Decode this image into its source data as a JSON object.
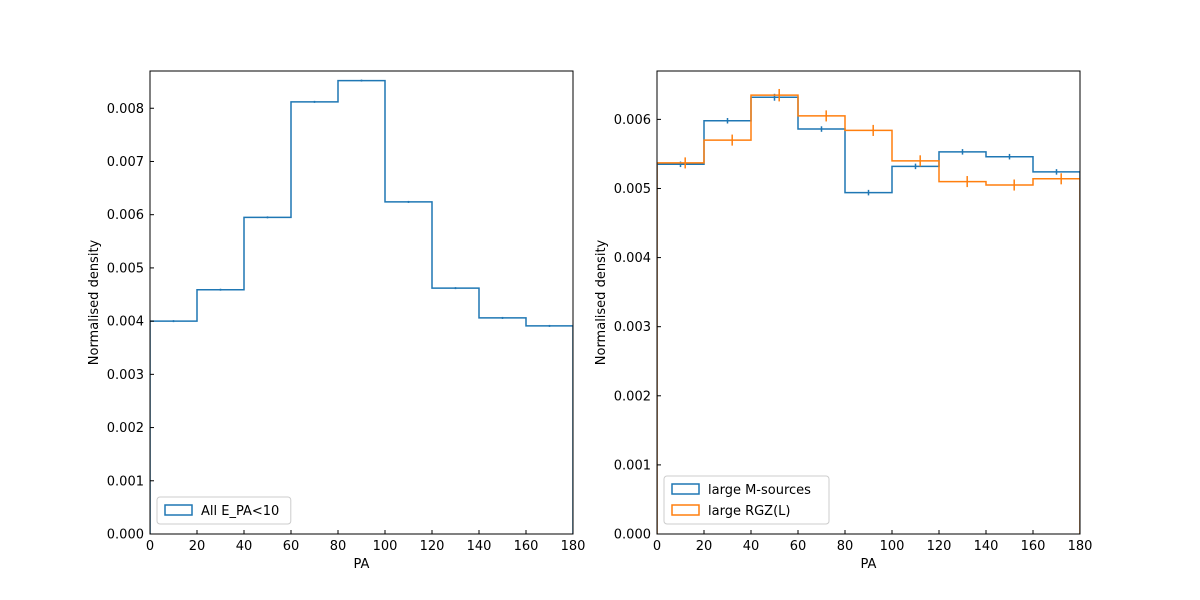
{
  "chart_data": [
    {
      "type": "histogram",
      "xlabel": "PA",
      "ylabel": "Normalised density",
      "xlim": [
        0,
        180
      ],
      "ylim": [
        0,
        0.0087
      ],
      "xticks": [
        0,
        20,
        40,
        60,
        80,
        100,
        120,
        140,
        160,
        180
      ],
      "yticks": [
        0.0,
        0.001,
        0.002,
        0.003,
        0.004,
        0.005,
        0.006,
        0.007,
        0.008
      ],
      "ytick_labels": [
        "0.000",
        "0.001",
        "0.002",
        "0.003",
        "0.004",
        "0.005",
        "0.006",
        "0.007",
        "0.008"
      ],
      "bins": [
        0,
        20,
        40,
        60,
        80,
        100,
        120,
        140,
        160,
        180
      ],
      "legend_position": "lower-left",
      "series": [
        {
          "name": "All E_PA<10",
          "color": "#1f77b4",
          "values": [
            0.004,
            0.00459,
            0.00595,
            0.00812,
            0.00852,
            0.00624,
            0.00462,
            0.00406,
            0.00391
          ],
          "errors": [
            5e-06,
            5e-06,
            5e-06,
            6e-06,
            6e-06,
            5e-06,
            5e-06,
            5e-06,
            5e-06
          ],
          "err_x_offset": 0
        }
      ]
    },
    {
      "type": "histogram",
      "xlabel": "PA",
      "ylabel": "Normalised density",
      "xlim": [
        0,
        180
      ],
      "ylim": [
        0,
        0.0067
      ],
      "xticks": [
        0,
        20,
        40,
        60,
        80,
        100,
        120,
        140,
        160,
        180
      ],
      "yticks": [
        0.0,
        0.001,
        0.002,
        0.003,
        0.004,
        0.005,
        0.006
      ],
      "ytick_labels": [
        "0.000",
        "0.001",
        "0.002",
        "0.003",
        "0.004",
        "0.005",
        "0.006"
      ],
      "bins": [
        0,
        20,
        40,
        60,
        80,
        100,
        120,
        140,
        160,
        180
      ],
      "legend_position": "lower-left",
      "series": [
        {
          "name": "large M-sources",
          "color": "#1f77b4",
          "values": [
            0.00535,
            0.00598,
            0.00632,
            0.00586,
            0.00494,
            0.00532,
            0.00553,
            0.00546,
            0.00524
          ],
          "errors": [
            4e-05,
            4e-05,
            5e-05,
            4e-05,
            4e-05,
            4e-05,
            4e-05,
            4e-05,
            4e-05
          ],
          "err_x_offset": 0
        },
        {
          "name": "large RGZ(L)",
          "color": "#ff7f0e",
          "values": [
            0.00537,
            0.0057,
            0.00635,
            0.00605,
            0.00584,
            0.0054,
            0.0051,
            0.00505,
            0.00514
          ],
          "errors": [
            8e-05,
            8e-05,
            9e-05,
            8e-05,
            8e-05,
            8e-05,
            8e-05,
            8e-05,
            8e-05
          ],
          "err_x_offset": 2
        }
      ]
    }
  ]
}
